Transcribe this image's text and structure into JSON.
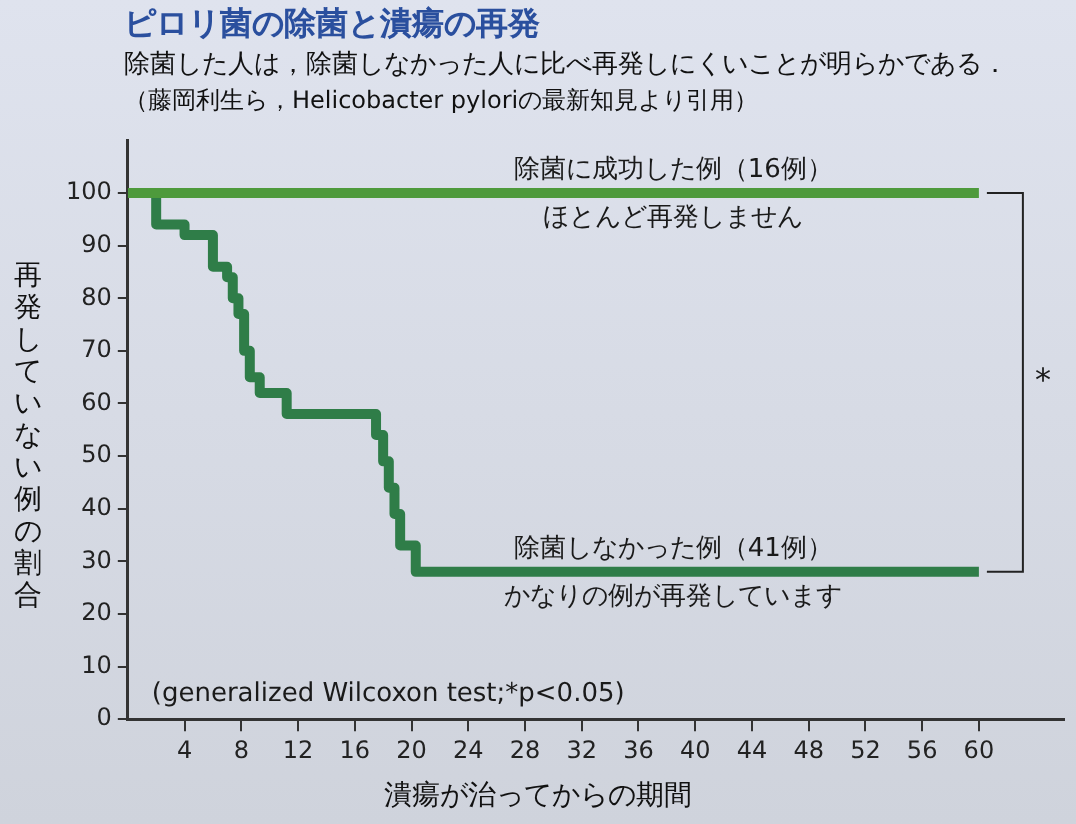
{
  "chart_data": {
    "type": "step",
    "title": "ピロリ菌の除菌と潰瘍の再発",
    "subtitle": "除菌した人は，除菌しなかった人に比べ再発しにくいことが明らかである．",
    "xlabel": "潰瘍が治ってからの期間",
    "ylabel": "再発していない例の割合",
    "annotations": [
      "（藤岡利生ら，Helicobacter pyloriの最新知見より引用）",
      "ほとんど再発しません",
      "かなりの例が再発しています",
      "(generalized Wilcoxon test;*p<0.05)",
      "*"
    ],
    "series": [
      {
        "name": "除菌に成功した例（16例）",
        "color": "#4e9a3c",
        "x": [
          0,
          60
        ],
        "values": [
          100,
          100
        ]
      },
      {
        "name": "除菌しなかった例（41例）",
        "color": "#2f7d48",
        "x": [
          0,
          2,
          4,
          6,
          7,
          7.4,
          7.8,
          8.2,
          8.6,
          9.3,
          11.2,
          17.5,
          18,
          18.4,
          18.8,
          19.2,
          20.3,
          60
        ],
        "values": [
          100,
          94,
          92,
          86,
          84,
          80,
          77,
          70,
          65,
          62,
          58,
          54,
          49,
          44,
          39,
          33,
          28,
          28
        ]
      }
    ],
    "xlim": [
      0,
      66
    ],
    "xticks": [
      4,
      8,
      12,
      16,
      20,
      24,
      28,
      32,
      36,
      40,
      44,
      48,
      52,
      56,
      60
    ],
    "ylim": [
      0,
      110
    ],
    "yticks": [
      0,
      10,
      20,
      30,
      40,
      50,
      60,
      70,
      80,
      90,
      100
    ],
    "legend": false,
    "grid": false,
    "marker": "none",
    "line_style": "solid"
  }
}
